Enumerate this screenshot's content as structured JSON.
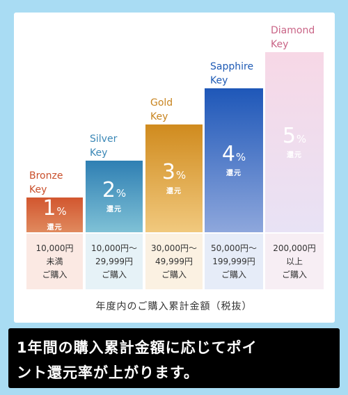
{
  "tiers": [
    {
      "name1": "Bronze",
      "name2": "Key",
      "pct": "1",
      "sign": "%",
      "kangen": "還元",
      "range1": "10,000円",
      "range2": "未満",
      "range3": "ご購入",
      "color": "#c94f2b"
    },
    {
      "name1": "Silver",
      "name2": "Key",
      "pct": "2",
      "sign": "%",
      "kangen": "還元",
      "range1": "10,000円～",
      "range2": "29,999円",
      "range3": "ご購入",
      "color": "#3a87b6"
    },
    {
      "name1": "Gold",
      "name2": "Key",
      "pct": "3",
      "sign": "%",
      "kangen": "還元",
      "range1": "30,000円～",
      "range2": "49,999円",
      "range3": "ご購入",
      "color": "#c8841f"
    },
    {
      "name1": "Sapphire",
      "name2": "Key",
      "pct": "4",
      "sign": "%",
      "kangen": "還元",
      "range1": "50,000円～",
      "range2": "199,999円",
      "range3": "ご購入",
      "color": "#1f5bb5"
    },
    {
      "name1": "Diamond",
      "name2": "Key",
      "pct": "5",
      "sign": "%",
      "kangen": "還元",
      "range1": "200,000円",
      "range2": "以上",
      "range3": "ご購入",
      "color": "#c96486"
    }
  ],
  "footer": "年度内のご購入累計金額（税抜）",
  "banner": {
    "line1": "1年間の購入累計金額に応じてポイ",
    "line2": "ント還元率が上がります。"
  }
}
